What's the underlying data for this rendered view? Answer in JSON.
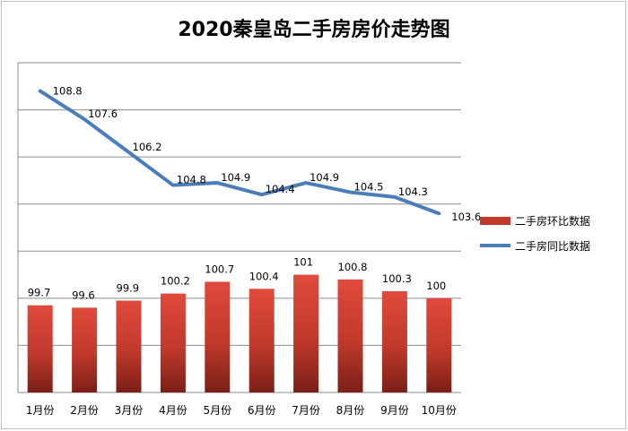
{
  "chart_data": {
    "type": "bar+line",
    "title": "2020秦皇岛二手房房价走势图",
    "categories": [
      "1月份",
      "2月份",
      "3月份",
      "4月份",
      "5月份",
      "6月份",
      "7月份",
      "8月份",
      "9月份",
      "10月份"
    ],
    "series": [
      {
        "name": "二手房环比数据",
        "type": "bar",
        "values": [
          99.7,
          99.6,
          99.9,
          100.2,
          100.7,
          100.4,
          101,
          100.8,
          100.3,
          100
        ],
        "labels": [
          "99.7",
          "99.6",
          "99.9",
          "100.2",
          "100.7",
          "100.4",
          "101",
          "100.8",
          "100.3",
          "100"
        ],
        "color": "#c0392b"
      },
      {
        "name": "二手房同比数据",
        "type": "line",
        "values": [
          108.8,
          107.6,
          106.2,
          104.8,
          104.9,
          104.4,
          104.9,
          104.5,
          104.3,
          103.6
        ],
        "labels": [
          "108.8",
          "107.6",
          "106.2",
          "104.8",
          "104.9",
          "104.4",
          "104.9",
          "104.5",
          "104.3",
          "103.6"
        ],
        "color": "#4a7ebb"
      }
    ],
    "ylim": [
      96,
      110
    ],
    "grid": true,
    "legend_position": "right"
  }
}
